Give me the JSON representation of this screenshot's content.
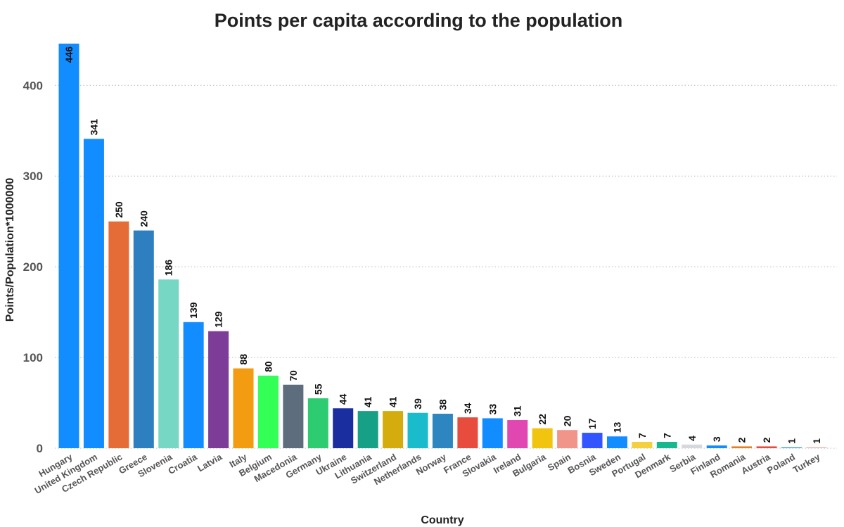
{
  "chart_data": {
    "type": "bar",
    "title": "Points per capita according to the population",
    "xlabel": "Country",
    "ylabel": "Points/Population*1000000",
    "ylim": [
      0,
      446
    ],
    "yticks": [
      0,
      100,
      200,
      300,
      400
    ],
    "grid": true,
    "categories": [
      "Hungary",
      "United Kingdom",
      "Czech Republic",
      "Greece",
      "Slovenia",
      "Croatia",
      "Latvia",
      "Italy",
      "Belgium",
      "Macedonia",
      "Germany",
      "Ukraine",
      "Lithuania",
      "Switzerland",
      "Netherlands",
      "Norway",
      "France",
      "Slovakia",
      "Ireland",
      "Bulgaria",
      "Spain",
      "Bosnia",
      "Sweden",
      "Portugal",
      "Denmark",
      "Serbia",
      "Finland",
      "Romania",
      "Austria",
      "Poland",
      "Turkey"
    ],
    "values": [
      446,
      341,
      250,
      240,
      186,
      139,
      129,
      88,
      80,
      70,
      55,
      44,
      41,
      41,
      39,
      38,
      34,
      33,
      31,
      22,
      20,
      17,
      13,
      7,
      7,
      4,
      3,
      2,
      2,
      1,
      1
    ],
    "colors": [
      "#118DFF",
      "#118DFF",
      "#E66C37",
      "#2D7FBF",
      "#76D7C4",
      "#118DFF",
      "#7D3C98",
      "#F39C12",
      "#33FF57",
      "#5D6D7E",
      "#2ECC71",
      "#1A2EA0",
      "#16A085",
      "#D4AC0D",
      "#1ABCCC",
      "#2E86C1",
      "#E74C3C",
      "#118DFF",
      "#E047B0",
      "#F1C40F",
      "#F1948A",
      "#3355FF",
      "#118DFF",
      "#F4D03F",
      "#17B890",
      "#D5D8DC",
      "#118DFF",
      "#E67E22",
      "#E74C3C",
      "#3498DB",
      "#E6B0AA"
    ]
  }
}
